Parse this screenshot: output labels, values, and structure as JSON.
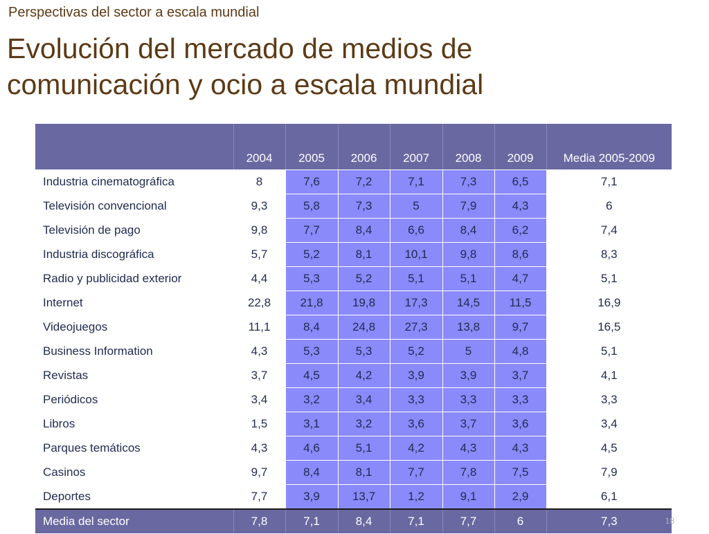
{
  "header": {
    "supertitle": "Perspectivas del sector a escala mundial",
    "title_line1": "Evolución del mercado de medios de",
    "title_line2": "comunicación y ocio a escala mundial"
  },
  "table": {
    "columns": [
      "",
      "2004",
      "2005",
      "2006",
      "2007",
      "2008",
      "2009",
      "Media 2005-2009"
    ],
    "rows": [
      [
        "Industria cinematográfica",
        "8",
        "7,6",
        "7,2",
        "7,1",
        "7,3",
        "6,5",
        "7,1"
      ],
      [
        "Televisión convencional",
        "9,3",
        "5,8",
        "7,3",
        "5",
        "7,9",
        "4,3",
        "6"
      ],
      [
        "Televisión de pago",
        "9,8",
        "7,7",
        "8,4",
        "6,6",
        "8,4",
        "6,2",
        "7,4"
      ],
      [
        "Industria discográfica",
        "5,7",
        "5,2",
        "8,1",
        "10,1",
        "9,8",
        "8,6",
        "8,3"
      ],
      [
        "Radio y publicidad exterior",
        "4,4",
        "5,3",
        "5,2",
        "5,1",
        "5,1",
        "4,7",
        "5,1"
      ],
      [
        "Internet",
        "22,8",
        "21,8",
        "19,8",
        "17,3",
        "14,5",
        "11,5",
        "16,9"
      ],
      [
        "Videojuegos",
        "11,1",
        "8,4",
        "24,8",
        "27,3",
        "13,8",
        "9,7",
        "16,5"
      ],
      [
        "Business  Information",
        "4,3",
        "5,3",
        "5,3",
        "5,2",
        "5",
        "4,8",
        "5,1"
      ],
      [
        "Revistas",
        "3,7",
        "4,5",
        "4,2",
        "3,9",
        "3,9",
        "3,7",
        "4,1"
      ],
      [
        "Periódicos",
        "3,4",
        "3,2",
        "3,4",
        "3,3",
        "3,3",
        "3,3",
        "3,3"
      ],
      [
        "Libros",
        "1,5",
        "3,1",
        "3,2",
        "3,6",
        "3,7",
        "3,6",
        "3,4"
      ],
      [
        "Parques temáticos",
        "4,3",
        "4,6",
        "5,1",
        "4,2",
        "4,3",
        "4,3",
        "4,5"
      ],
      [
        "Casinos",
        "9,7",
        "8,4",
        "8,1",
        "7,7",
        "7,8",
        "7,5",
        "7,9"
      ],
      [
        "Deportes",
        "7,7",
        "3,9",
        "13,7",
        "1,2",
        "9,1",
        "2,9",
        "6,1"
      ]
    ],
    "total_row": [
      "Media del sector",
      "7,8",
      "7,1",
      "8,4",
      "7,1",
      "7,7",
      "6",
      "7,3"
    ]
  },
  "footer": {
    "page_number": "18"
  },
  "colors": {
    "title": "#5c3a16",
    "header_fill": "#6a68a0",
    "highlight_fill": "#8a8afa",
    "text": "#1f2a4f"
  }
}
